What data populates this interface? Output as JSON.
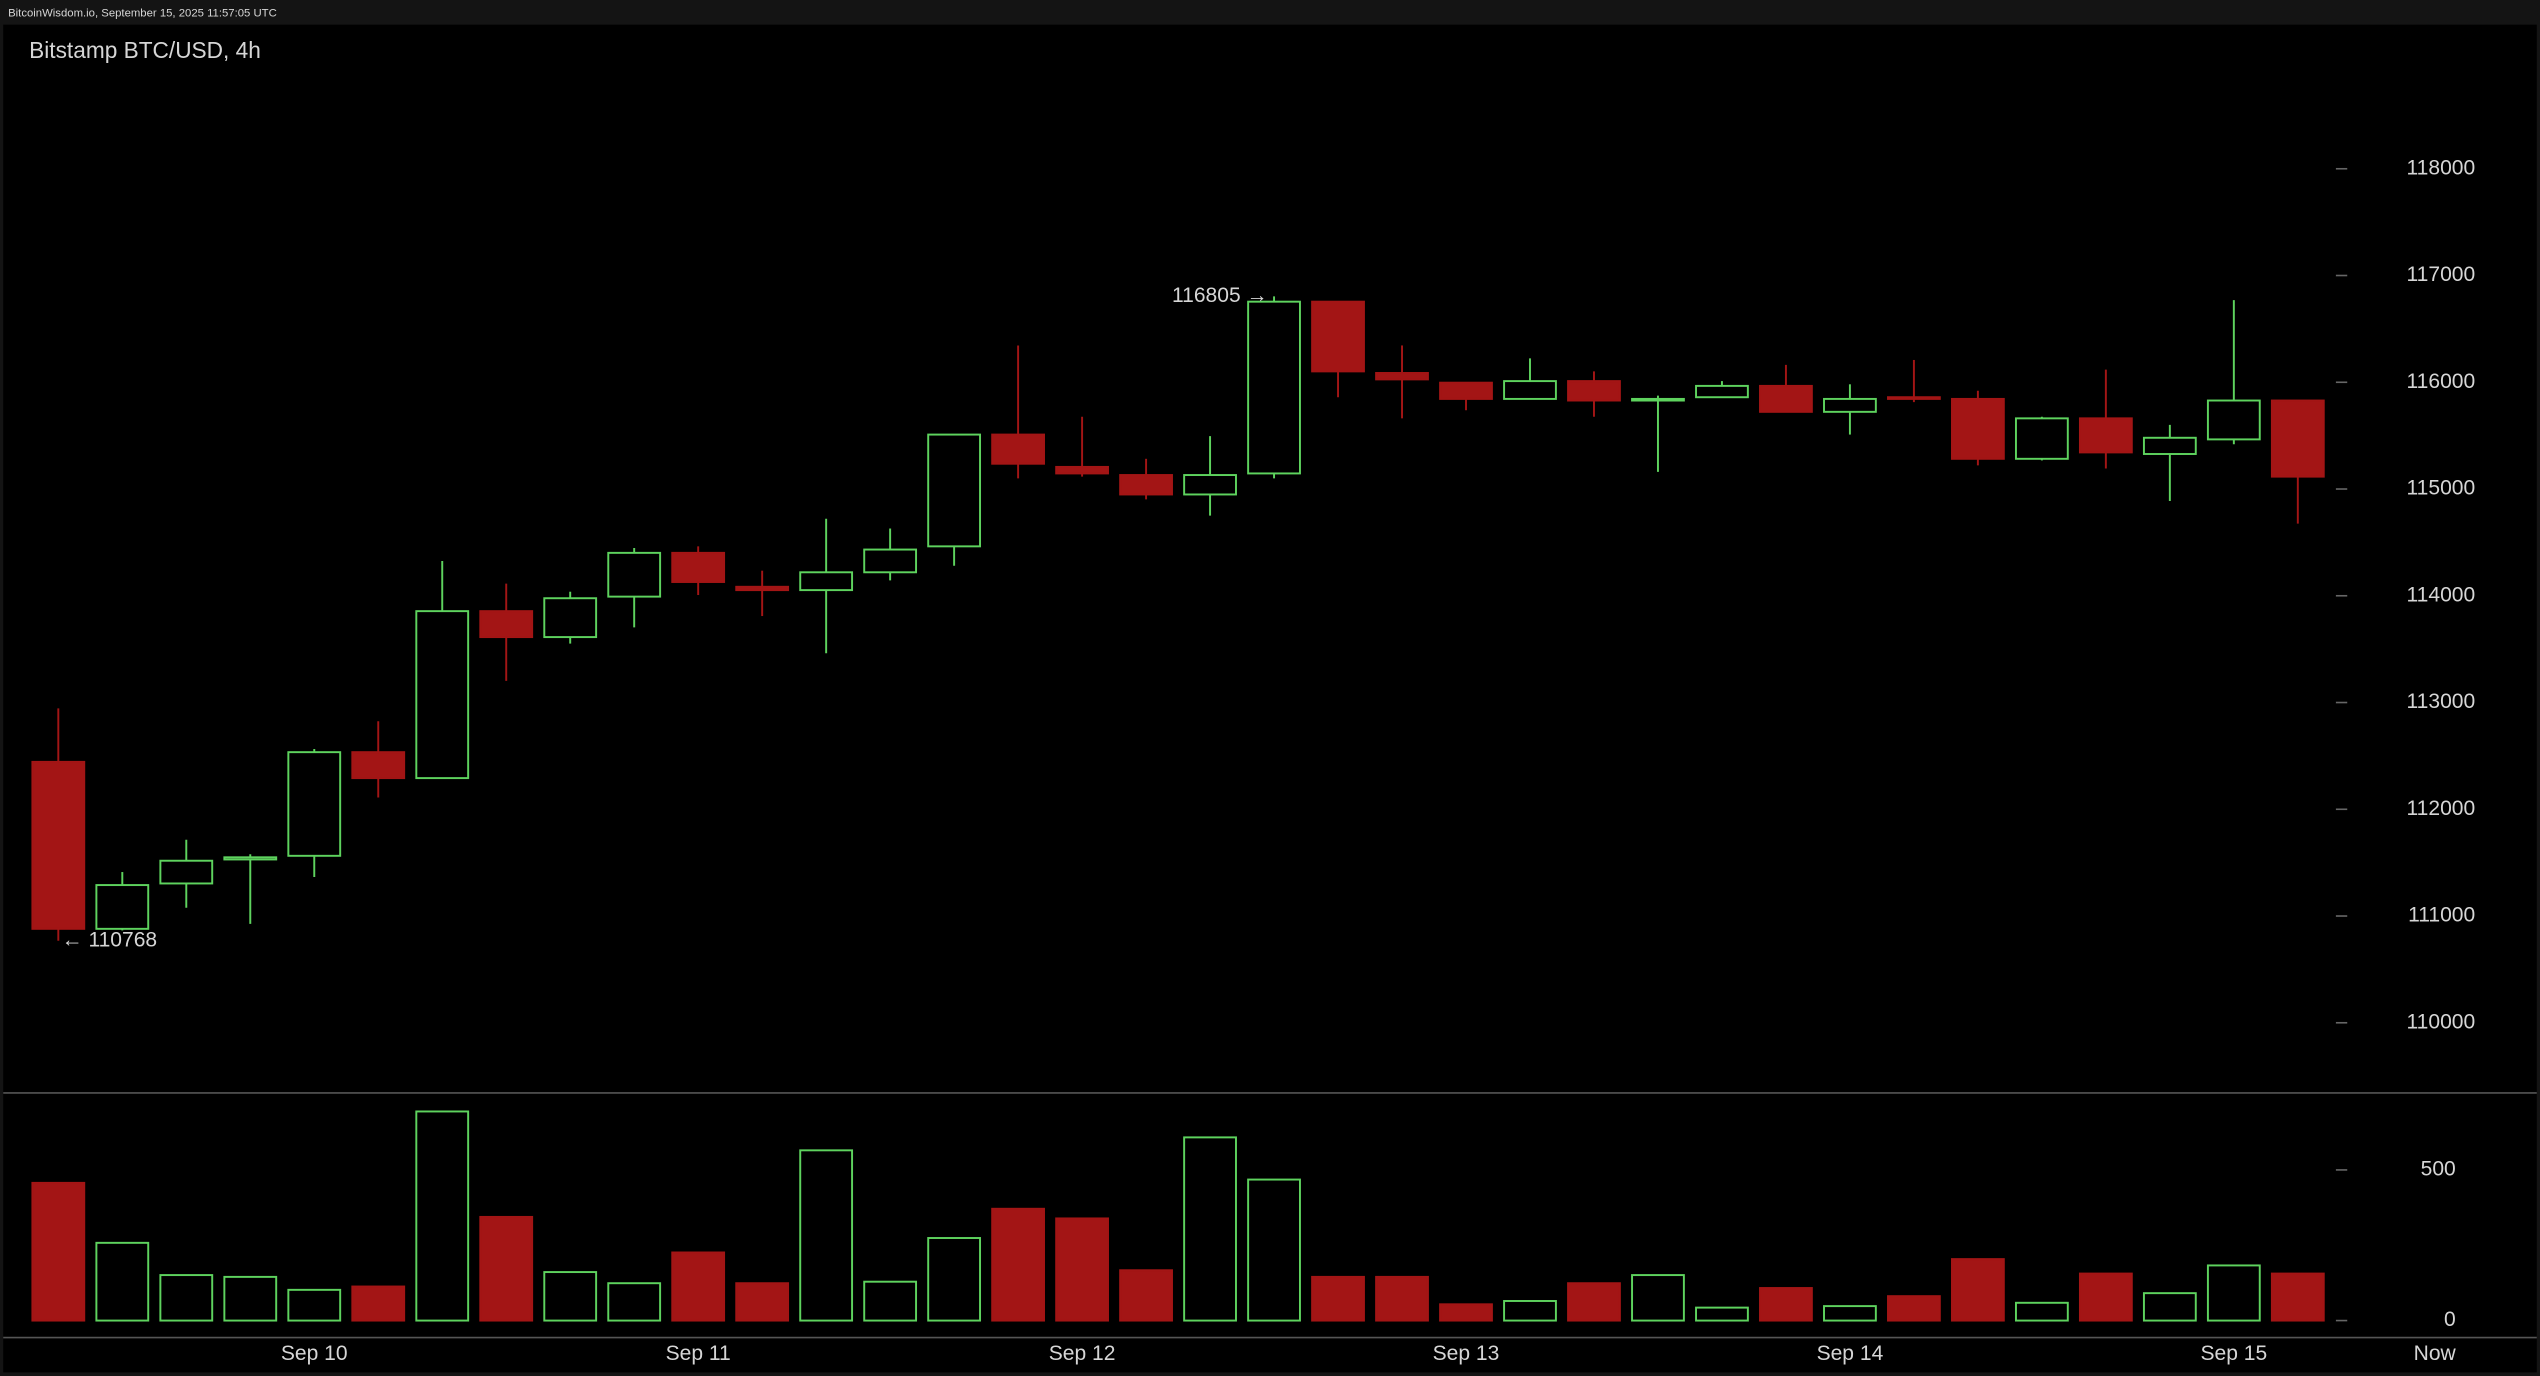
{
  "chart_data": {
    "type": "candlestick",
    "source": "BitcoinWisdom.io, September 15, 2025 11:57:05 UTC",
    "title": "Bitstamp BTC/USD, 4h",
    "categories": [
      null,
      null,
      null,
      null,
      "Sep 10",
      null,
      null,
      null,
      null,
      null,
      "Sep 11",
      null,
      null,
      null,
      null,
      null,
      "Sep 12",
      null,
      null,
      null,
      null,
      null,
      "Sep 13",
      null,
      null,
      null,
      null,
      null,
      "Sep 14",
      null,
      null,
      null,
      null,
      null,
      "Sep 15",
      null
    ],
    "now_label": "Now",
    "open": [
      112444,
      110880,
      111305,
      111530,
      111564,
      112535,
      112292,
      113856,
      113613,
      113992,
      114402,
      114084,
      114053,
      114220,
      114463,
      115510,
      115207,
      115131,
      114949,
      115146,
      116755,
      116087,
      115996,
      115844,
      116011,
      115829,
      115860,
      115966,
      115723,
      115860,
      115844,
      115283,
      115662,
      115328,
      115465,
      115829
    ],
    "high": [
      112945,
      111412,
      111715,
      111579,
      112565,
      112824,
      114326,
      114114,
      114038,
      114448,
      114463,
      114235,
      114721,
      114630,
      115510,
      116345,
      115677,
      115283,
      115495,
      116805,
      116755,
      116345,
      115996,
      116224,
      116102,
      115875,
      116011,
      116163,
      115981,
      116209,
      115920,
      115677,
      116118,
      115601,
      116770,
      115829
    ],
    "low": [
      110768,
      110865,
      111078,
      110926,
      111366,
      112110,
      112292,
      113203,
      113552,
      113704,
      114007,
      113810,
      113461,
      114144,
      114281,
      115100,
      115116,
      114903,
      114751,
      115100,
      115860,
      115662,
      115738,
      115844,
      115677,
      115161,
      115860,
      115723,
      115510,
      115814,
      115222,
      115268,
      115192,
      114888,
      115419,
      114676
    ],
    "close": [
      110880,
      111290,
      111518,
      111550,
      112535,
      112292,
      113856,
      113613,
      113977,
      114402,
      114129,
      114053,
      114220,
      114433,
      115510,
      115237,
      115146,
      114949,
      115131,
      116755,
      116102,
      116027,
      115844,
      116011,
      115829,
      115844,
      115966,
      115723,
      115844,
      115844,
      115283,
      115662,
      115343,
      115480,
      115829,
      115116
    ],
    "volume": [
      457,
      258,
      151,
      145,
      102,
      113,
      694,
      344,
      161,
      124,
      226,
      124,
      565,
      129,
      274,
      371,
      339,
      167,
      608,
      468,
      145,
      145,
      54,
      65,
      124,
      151,
      43,
      108,
      48,
      81,
      204,
      59,
      156,
      91,
      183,
      156
    ],
    "ylim": [
      109350,
      119350
    ],
    "yticks": [
      110000,
      111000,
      112000,
      113000,
      114000,
      115000,
      116000,
      117000,
      118000
    ],
    "volume_ylim": [
      0,
      750
    ],
    "volume_ticks": [
      0,
      500
    ],
    "up_color": "#5ed35e",
    "down_color": "#a31515",
    "annotations": {
      "high": "116805 →",
      "low": "← 110768"
    }
  }
}
